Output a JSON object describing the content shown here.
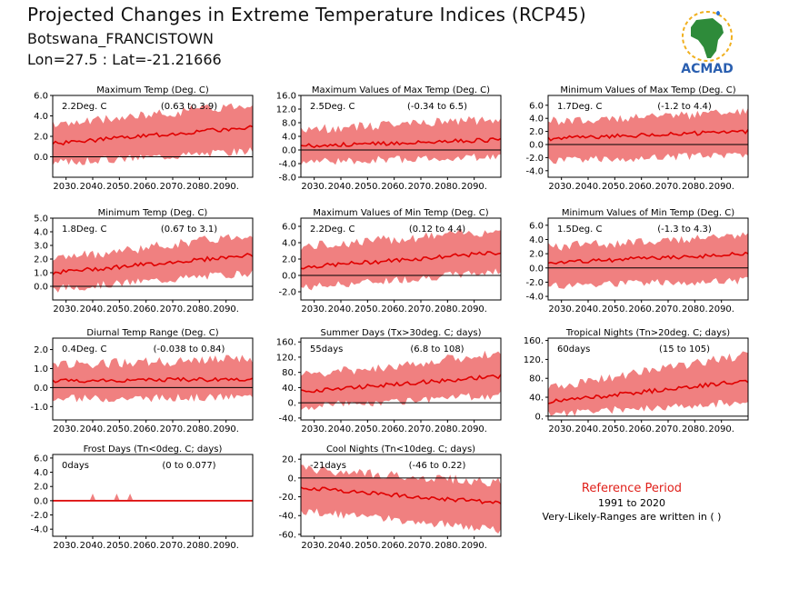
{
  "header": {
    "title": "Projected Changes in Extreme Temperature Indices (RCP45)",
    "subtitle": "Botswana_FRANCISTOWN",
    "coords": "Lon=27.5 : Lat=-21.21666"
  },
  "logo": {
    "text": "ACMAD",
    "icon": "africa-map-icon"
  },
  "reference": {
    "title": "Reference Period",
    "years": "1991 to 2020",
    "note": "Very-Likely-Ranges are written in ( )"
  },
  "colors": {
    "band": "#f08080",
    "line": "#e00000",
    "zero": "#000000",
    "ref_title": "#e0201a"
  },
  "chart_data": [
    {
      "type": "area",
      "title": "Maximum Temp (Deg. C)",
      "value_label": "2.2Deg. C",
      "range_label": "(0.63 to 3.9)",
      "x_ticks": [
        "2030.",
        "2040.",
        "2050.",
        "2060.",
        "2070.",
        "2080.",
        "2090."
      ],
      "ylim": [
        -2,
        6
      ],
      "y_ticks": [
        6,
        4,
        2,
        0
      ],
      "y_tick_labels": [
        "6.0",
        "4.0",
        "2.0",
        "0.0"
      ],
      "x": [
        2025,
        2100
      ],
      "series": [
        {
          "mean_start": 1.3,
          "mean_end": 2.9,
          "band_low_start": -0.6,
          "band_low_end": 0.6,
          "band_high_start": 3.1,
          "band_high_end": 5.2
        }
      ]
    },
    {
      "type": "area",
      "title": "Maximum Values of Max Temp (Deg. C)",
      "value_label": "2.5Deg. C",
      "range_label": "(-0.34 to 6.5)",
      "x_ticks": [
        "2030.",
        "2040.",
        "2050.",
        "2060.",
        "2070.",
        "2080.",
        "2090."
      ],
      "ylim": [
        -8,
        16
      ],
      "y_ticks": [
        16,
        12,
        8,
        4,
        0,
        -4,
        -8
      ],
      "y_tick_labels": [
        "16.0",
        "12.0",
        "8.0",
        "4.0",
        "0.0",
        "-4.0",
        "-8.0"
      ],
      "x": [
        2025,
        2100
      ],
      "series": [
        {
          "mean_start": 1.2,
          "mean_end": 3.0,
          "band_low_start": -3.5,
          "band_low_end": -2.0,
          "band_high_start": 6.0,
          "band_high_end": 9.0
        }
      ]
    },
    {
      "type": "area",
      "title": "Minimum Values of Max Temp (Deg. C)",
      "value_label": "1.7Deg. C",
      "range_label": "(-1.2 to 4.4)",
      "x_ticks": [
        "2030.",
        "2040.",
        "2050.",
        "2060.",
        "2070.",
        "2080.",
        "2090."
      ],
      "ylim": [
        -5,
        7.5
      ],
      "y_ticks": [
        6,
        4,
        2,
        0,
        -2,
        -4
      ],
      "y_tick_labels": [
        "6.0",
        "4.0",
        "2.0",
        "0.0",
        "-2.0",
        "-4.0"
      ],
      "x": [
        2025,
        2100
      ],
      "series": [
        {
          "mean_start": 0.9,
          "mean_end": 2.0,
          "band_low_start": -2.5,
          "band_low_end": -1.5,
          "band_high_start": 3.5,
          "band_high_end": 5.0
        }
      ]
    },
    {
      "type": "area",
      "title": "Minimum Temp (Deg. C)",
      "value_label": "1.8Deg. C",
      "range_label": "(0.67 to 3.1)",
      "x_ticks": [
        "2030.",
        "2040.",
        "2050.",
        "2060.",
        "2070.",
        "2080.",
        "2090."
      ],
      "ylim": [
        -1,
        5
      ],
      "y_ticks": [
        5,
        4,
        3,
        2,
        1,
        0
      ],
      "y_tick_labels": [
        "5.0",
        "4.0",
        "3.0",
        "2.0",
        "1.0",
        "0.0"
      ],
      "x": [
        2025,
        2100
      ],
      "series": [
        {
          "mean_start": 1.0,
          "mean_end": 2.3,
          "band_low_start": -0.2,
          "band_low_end": 1.0,
          "band_high_start": 2.0,
          "band_high_end": 3.8
        }
      ]
    },
    {
      "type": "area",
      "title": "Maximum Values of Min Temp (Deg. C)",
      "value_label": "2.2Deg. C",
      "range_label": "(0.12 to 4.4)",
      "x_ticks": [
        "2030.",
        "2040.",
        "2050.",
        "2060.",
        "2070.",
        "2080.",
        "2090."
      ],
      "ylim": [
        -3,
        7
      ],
      "y_ticks": [
        6,
        4,
        2,
        0,
        -2
      ],
      "y_tick_labels": [
        "6.0",
        "4.0",
        "2.0",
        "0.0",
        "-2.0"
      ],
      "x": [
        2025,
        2100
      ],
      "series": [
        {
          "mean_start": 1.0,
          "mean_end": 2.8,
          "band_low_start": -1.5,
          "band_low_end": 0.5,
          "band_high_start": 3.5,
          "band_high_end": 5.5
        }
      ]
    },
    {
      "type": "area",
      "title": "Minimum Values of Min Temp (Deg. C)",
      "value_label": "1.5Deg. C",
      "range_label": "(-1.3 to 4.3)",
      "x_ticks": [
        "2030.",
        "2040.",
        "2050.",
        "2060.",
        "2070.",
        "2080.",
        "2090."
      ],
      "ylim": [
        -4.5,
        7
      ],
      "y_ticks": [
        6,
        4,
        2,
        0,
        -2,
        -4
      ],
      "y_tick_labels": [
        "6.0",
        "4.0",
        "2.0",
        "0.0",
        "-2.0",
        "-4.0"
      ],
      "x": [
        2025,
        2100
      ],
      "series": [
        {
          "mean_start": 0.7,
          "mean_end": 2.0,
          "band_low_start": -2.5,
          "band_low_end": -1.8,
          "band_high_start": 3.0,
          "band_high_end": 4.5
        }
      ]
    },
    {
      "type": "area",
      "title": "Diurnal Temp Range (Deg. C)",
      "value_label": "0.4Deg. C",
      "range_label": "(-0.038 to 0.84)",
      "x_ticks": [
        "2030.",
        "2040.",
        "2050.",
        "2060.",
        "2070.",
        "2080.",
        "2090."
      ],
      "ylim": [
        -1.7,
        2.6
      ],
      "y_ticks": [
        2,
        1,
        0,
        -1
      ],
      "y_tick_labels": [
        "2.0",
        "1.0",
        "0.0",
        "-1.0"
      ],
      "x": [
        2025,
        2100
      ],
      "series": [
        {
          "mean_start": 0.35,
          "mean_end": 0.45,
          "band_low_start": -0.6,
          "band_low_end": -0.5,
          "band_high_start": 1.2,
          "band_high_end": 1.5
        }
      ]
    },
    {
      "type": "area",
      "title": "Summer Days (Tx>30deg. C; days)",
      "value_label": "55days",
      "range_label": "(6.8 to 108)",
      "x_ticks": [
        "2030.",
        "2040.",
        "2050.",
        "2060.",
        "2070.",
        "2080.",
        "2090."
      ],
      "ylim": [
        -45,
        170
      ],
      "y_ticks": [
        160,
        120,
        80,
        40,
        0,
        -40
      ],
      "y_tick_labels": [
        "160.",
        "120.",
        "80.",
        "40.",
        "0.",
        "-40."
      ],
      "x": [
        2025,
        2100
      ],
      "series": [
        {
          "mean_start": 30,
          "mean_end": 70,
          "band_low_start": -10,
          "band_low_end": 20,
          "band_high_start": 70,
          "band_high_end": 130
        }
      ]
    },
    {
      "type": "area",
      "title": "Tropical Nights (Tn>20deg. C; days)",
      "value_label": "60days",
      "range_label": "(15 to 105)",
      "x_ticks": [
        "2030.",
        "2040.",
        "2050.",
        "2060.",
        "2070.",
        "2080.",
        "2090."
      ],
      "ylim": [
        -8,
        165
      ],
      "y_ticks": [
        160,
        120,
        80,
        40,
        0
      ],
      "y_tick_labels": [
        "160.",
        "120.",
        "80.",
        "40.",
        "0."
      ],
      "x": [
        2025,
        2100
      ],
      "series": [
        {
          "mean_start": 30,
          "mean_end": 75,
          "band_low_start": 5,
          "band_low_end": 30,
          "band_high_start": 60,
          "band_high_end": 130
        }
      ]
    },
    {
      "type": "area",
      "title": "Frost Days (Tn<0deg. C; days)",
      "value_label": "0days",
      "range_label": "(0 to 0.077)",
      "x_ticks": [
        "2030.",
        "2040.",
        "2050.",
        "2060.",
        "2070.",
        "2080.",
        "2090."
      ],
      "ylim": [
        -5,
        6.5
      ],
      "y_ticks": [
        6,
        4,
        2,
        0,
        -2,
        -4
      ],
      "y_tick_labels": [
        "6.0",
        "4.0",
        "2.0",
        "0.0",
        "-2.0",
        "-4.0"
      ],
      "x": [
        2025,
        2100
      ],
      "series": [
        {
          "mean_start": 0,
          "mean_end": 0,
          "band_low_start": 0,
          "band_low_end": 0,
          "band_high_start": 0.2,
          "band_high_end": 0.1
        }
      ]
    },
    {
      "type": "area",
      "title": "Cool Nights (Tn<10deg. C; days)",
      "value_label": "-21days",
      "range_label": "(-46 to 0.22)",
      "x_ticks": [
        "2030.",
        "2040.",
        "2050.",
        "2060.",
        "2070.",
        "2080.",
        "2090."
      ],
      "ylim": [
        -62,
        25
      ],
      "y_ticks": [
        20,
        0,
        -20,
        -40,
        -60
      ],
      "y_tick_labels": [
        "20.",
        "0.",
        "-20.",
        "-40.",
        "-60."
      ],
      "x": [
        2025,
        2100
      ],
      "series": [
        {
          "mean_start": -10,
          "mean_end": -27,
          "band_low_start": -35,
          "band_low_end": -55,
          "band_high_start": 10,
          "band_high_end": -5
        }
      ]
    }
  ]
}
